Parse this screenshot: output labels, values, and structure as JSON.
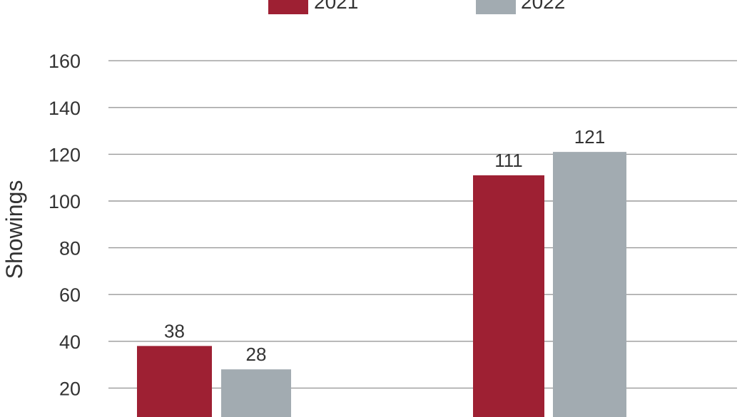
{
  "chart_data": {
    "type": "bar",
    "categories": [
      "",
      ""
    ],
    "series": [
      {
        "name": "2021",
        "color": "#9e2033",
        "values": [
          38,
          111
        ]
      },
      {
        "name": "2022",
        "color": "#a2abb1",
        "values": [
          28,
          121
        ]
      }
    ],
    "ylabel": "Showings",
    "ylim": [
      0,
      160
    ],
    "yticks": [
      20,
      40,
      60,
      80,
      100,
      120,
      140,
      160
    ],
    "grid": true,
    "legend": "top-center"
  }
}
